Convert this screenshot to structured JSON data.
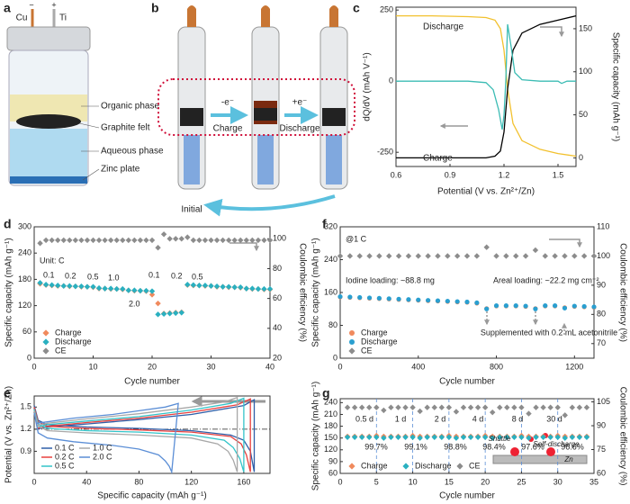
{
  "figure": {
    "panel_a": {
      "letter": "a",
      "electrode_left": "Cu",
      "electrode_right": "Ti",
      "minus": "−",
      "plus": "+",
      "layers": [
        "Organic phase",
        "Graphite felt",
        "Aqueous phase",
        "Zinc plate"
      ]
    },
    "panel_b": {
      "letter": "b",
      "oxidation": "-e⁻",
      "charge": "Charge",
      "reduction": "+e⁻",
      "discharge": "Discharge",
      "initial": "Initial"
    }
  },
  "chart_data": [
    {
      "type": "line",
      "panel": "c",
      "xlabel": "Potential (V vs. Zn²⁺/Zn)",
      "ylabel": "dQ/dV (mAh V⁻¹)",
      "y2label": "Specific capacity (mAh g⁻¹)",
      "xlim": [
        0.6,
        1.6
      ],
      "xticks": [
        0.6,
        0.9,
        1.2,
        1.5
      ],
      "ylim": [
        -300,
        260
      ],
      "yticks": [
        -250,
        0,
        250
      ],
      "y2lim": [
        -10,
        175
      ],
      "y2ticks": [
        0,
        50,
        100,
        150
      ],
      "series": [
        {
          "name": "Discharge",
          "color": "#f2c12e",
          "axis": "y2",
          "x": [
            0.6,
            0.8,
            1.0,
            1.1,
            1.15,
            1.18,
            1.2,
            1.22,
            1.25,
            1.3,
            1.4,
            1.5,
            1.6
          ],
          "values": [
            165,
            165,
            164,
            163,
            160,
            150,
            125,
            80,
            40,
            20,
            10,
            5,
            2
          ]
        },
        {
          "name": "Charge",
          "color": "#000000",
          "axis": "y2",
          "x": [
            0.6,
            0.9,
            1.1,
            1.15,
            1.18,
            1.2,
            1.22,
            1.25,
            1.3,
            1.4,
            1.5,
            1.6
          ],
          "values": [
            0,
            0,
            0,
            2,
            8,
            30,
            80,
            125,
            145,
            155,
            160,
            165
          ]
        },
        {
          "color": "#3cbcb4",
          "x": [
            0.6,
            1.0,
            1.1,
            1.14,
            1.17,
            1.19,
            1.2,
            1.21,
            1.22,
            1.24,
            1.26,
            1.3,
            1.4,
            1.5,
            1.52,
            1.55,
            1.6
          ],
          "values": [
            0,
            0,
            -5,
            -30,
            -100,
            -170,
            -120,
            0,
            200,
            120,
            30,
            5,
            0,
            0,
            -8,
            0,
            0
          ]
        }
      ]
    },
    {
      "type": "scatter",
      "panel": "d",
      "xlabel": "Cycle number",
      "ylabel": "Specific capacity (mAh g⁻¹)",
      "y2label": "Coulombic efficiency (%)",
      "xlim": [
        0,
        40
      ],
      "xticks": [
        0,
        10,
        20,
        30,
        40
      ],
      "ylim": [
        0,
        300
      ],
      "yticks": [
        0,
        60,
        120,
        180,
        240,
        300
      ],
      "y2lim": [
        20,
        108
      ],
      "y2ticks": [
        20,
        40,
        60,
        80,
        100
      ],
      "legend": "lower left",
      "annotations": [
        "Unit: C",
        "0.1",
        "0.2",
        "0.5",
        "1.0",
        "2.0",
        "0.1",
        "0.2",
        "0.5"
      ],
      "x": [
        1,
        2,
        3,
        4,
        5,
        6,
        7,
        8,
        9,
        10,
        11,
        12,
        13,
        14,
        15,
        16,
        17,
        18,
        19,
        20,
        21,
        22,
        23,
        24,
        25,
        26,
        27,
        28,
        29,
        30,
        31,
        32,
        33,
        34,
        35,
        36,
        37,
        38,
        39,
        40
      ],
      "series": [
        {
          "name": "Charge",
          "color": "#f08a5d",
          "marker": "diamond",
          "values": [
            170,
            167,
            166,
            165,
            165,
            164,
            164,
            163,
            163,
            162,
            159,
            159,
            158,
            158,
            157,
            155,
            154,
            154,
            153,
            145,
            125,
            102,
            103,
            104,
            105,
            167,
            166,
            166,
            165,
            165,
            163,
            163,
            162,
            162,
            161,
            159,
            158,
            158,
            157,
            157
          ]
        },
        {
          "name": "Discharge",
          "color": "#2ab0c0",
          "marker": "diamond",
          "values": [
            172,
            168,
            167,
            166,
            165,
            165,
            164,
            164,
            163,
            163,
            160,
            159,
            159,
            158,
            158,
            155,
            155,
            154,
            154,
            153,
            100,
            101,
            102,
            103,
            104,
            168,
            167,
            166,
            166,
            165,
            164,
            163,
            163,
            162,
            162,
            159,
            159,
            158,
            158,
            158
          ]
        },
        {
          "name": "CE",
          "color": "#8c8c8c",
          "marker": "diamond",
          "axis": "y2",
          "values": [
            97,
            99,
            99,
            99,
            99,
            99,
            99,
            99,
            99,
            99,
            99,
            99,
            99,
            99,
            99,
            99,
            99,
            99,
            99,
            99,
            94,
            103,
            100,
            100,
            100,
            101,
            99,
            99,
            99,
            99,
            99,
            99,
            99,
            99,
            99,
            99,
            99,
            99,
            99,
            99
          ]
        }
      ]
    },
    {
      "type": "line",
      "panel": "e",
      "xlabel": "Specific capacity (mAh g⁻¹)",
      "ylabel": "Potential (V vs. Zn²⁺/Zn)",
      "xlim": [
        0,
        180
      ],
      "xticks": [
        0,
        40,
        80,
        120,
        160
      ],
      "ylim": [
        0.6,
        1.65
      ],
      "yticks": [
        0.9,
        1.2,
        1.5
      ],
      "hline": 1.2,
      "legend": "lower left",
      "legend_columns": 2,
      "series": [
        {
          "name": "0.1 C",
          "color": "#2f5fa8",
          "x": [
            0,
            3,
            10,
            40,
            80,
            120,
            150,
            160,
            165,
            168,
            168,
            160,
            120,
            80,
            40,
            10,
            2
          ],
          "values": [
            1.52,
            1.32,
            1.26,
            1.23,
            1.21,
            1.18,
            1.12,
            1.05,
            0.9,
            0.62,
            1.6,
            1.52,
            1.4,
            1.33,
            1.27,
            1.23,
            1.2
          ]
        },
        {
          "name": "0.2 C",
          "color": "#e8403e",
          "x": [
            0,
            3,
            10,
            40,
            80,
            120,
            150,
            158,
            162,
            165,
            165,
            155,
            120,
            80,
            40,
            10,
            2
          ],
          "values": [
            1.5,
            1.3,
            1.24,
            1.21,
            1.19,
            1.16,
            1.1,
            1.0,
            0.85,
            0.62,
            1.61,
            1.53,
            1.43,
            1.35,
            1.29,
            1.24,
            1.21
          ]
        },
        {
          "name": "0.5 C",
          "color": "#33c4c9",
          "x": [
            0,
            3,
            10,
            40,
            80,
            120,
            145,
            152,
            157,
            160,
            160,
            150,
            120,
            80,
            40,
            10,
            2
          ],
          "values": [
            1.47,
            1.27,
            1.21,
            1.18,
            1.16,
            1.12,
            1.05,
            0.95,
            0.8,
            0.62,
            1.62,
            1.55,
            1.46,
            1.37,
            1.31,
            1.26,
            1.23
          ]
        },
        {
          "name": "1.0 C",
          "color": "#a8a8a8",
          "x": [
            0,
            3,
            10,
            40,
            80,
            120,
            140,
            148,
            152,
            155,
            155,
            145,
            120,
            80,
            40,
            10,
            2
          ],
          "values": [
            1.45,
            1.24,
            1.18,
            1.15,
            1.12,
            1.08,
            1.0,
            0.9,
            0.78,
            0.62,
            1.63,
            1.57,
            1.5,
            1.41,
            1.34,
            1.28,
            1.25
          ]
        },
        {
          "name": "2.0 C",
          "color": "#5b8ed6",
          "x": [
            0,
            3,
            10,
            30,
            60,
            80,
            95,
            100,
            103,
            105,
            110,
            100,
            80,
            60,
            30,
            10,
            2
          ],
          "values": [
            1.42,
            1.15,
            1.08,
            1.03,
            0.98,
            0.93,
            0.85,
            0.77,
            0.7,
            0.62,
            1.55,
            1.5,
            1.45,
            1.4,
            1.35,
            1.3,
            1.28
          ]
        }
      ]
    },
    {
      "type": "scatter",
      "panel": "f",
      "xlabel": "Cycle number",
      "ylabel": "Specific capacity (mAh g⁻¹)",
      "y2label": "Coulombic efficiency (%)",
      "xlim": [
        0,
        1300
      ],
      "xticks": [
        0,
        400,
        800,
        1200
      ],
      "ylim": [
        0,
        320
      ],
      "yticks": [
        0,
        80,
        160,
        240,
        320
      ],
      "y2lim": [
        65,
        110
      ],
      "y2ticks": [
        70,
        80,
        90,
        100,
        110
      ],
      "legend": "lower left",
      "annotations": [
        "@1 C",
        "Iodine loading: ~88.8 mg",
        "Areal loading: ~22.2 mg cm⁻²",
        "Supplemented with 0.2 mL acetonitrile"
      ],
      "x": [
        0,
        50,
        100,
        150,
        200,
        250,
        300,
        350,
        400,
        450,
        500,
        550,
        600,
        650,
        700,
        750,
        800,
        850,
        900,
        950,
        1000,
        1050,
        1100,
        1150,
        1200,
        1250,
        1300
      ],
      "series": [
        {
          "name": "Charge",
          "color": "#f08a5d",
          "marker": "circle",
          "values": [
            149,
            148,
            147,
            146,
            145,
            144,
            143,
            142,
            141,
            140,
            139,
            138,
            137,
            136,
            134,
            121,
            127,
            127,
            127,
            126,
            121,
            127,
            127,
            123,
            126,
            125,
            124
          ]
        },
        {
          "name": "Discharge",
          "color": "#2a9fd0",
          "marker": "circle",
          "values": [
            150,
            149,
            148,
            147,
            146,
            145,
            144,
            143,
            142,
            141,
            140,
            139,
            138,
            137,
            135,
            120,
            128,
            128,
            128,
            127,
            120,
            128,
            128,
            122,
            127,
            126,
            125
          ]
        },
        {
          "name": "CE",
          "color": "#8c8c8c",
          "marker": "diamond",
          "axis": "y2",
          "values": [
            100,
            100,
            100,
            100,
            100,
            100,
            100,
            100,
            100,
            100,
            100,
            100,
            100,
            100,
            100,
            103,
            100,
            100,
            100,
            100,
            102,
            100,
            100,
            100,
            100,
            100,
            100
          ]
        }
      ]
    },
    {
      "type": "scatter",
      "panel": "g",
      "xlabel": "Cycle number",
      "ylabel": "Specific capacity (mAh g⁻¹)",
      "y2label": "Coulombic efficiency (%)",
      "xlim": [
        0,
        35
      ],
      "xticks": [
        0,
        5,
        10,
        15,
        20,
        25,
        30,
        35
      ],
      "ylim": [
        60,
        250
      ],
      "yticks": [
        60,
        90,
        120,
        150,
        180,
        210,
        240
      ],
      "y2lim": [
        60,
        107
      ],
      "y2ticks": [
        60,
        75,
        90,
        105
      ],
      "vlines": [
        5,
        10,
        15,
        20,
        25,
        30
      ],
      "legend": "lower left",
      "legend_columns": 3,
      "annotations": [
        "0.5 d",
        "1 d",
        "2 d",
        "4 d",
        "8 d",
        "30 d",
        "99.7%",
        "99.1%",
        "98.8%",
        "98.4%",
        "97.6%",
        "96.6%",
        "Shuttle",
        "Self-discharge",
        "Zn"
      ],
      "x": [
        1,
        2,
        3,
        4,
        5,
        6,
        7,
        8,
        9,
        10,
        11,
        12,
        13,
        14,
        15,
        16,
        17,
        18,
        19,
        20,
        21,
        22,
        23,
        24,
        25,
        26,
        27,
        28,
        29,
        30,
        31,
        32,
        33,
        34
      ],
      "series": [
        {
          "name": "Charge",
          "color": "#f08a5d",
          "marker": "diamond",
          "values": [
            154,
            154,
            154,
            154,
            156,
            154,
            154,
            154,
            154,
            156,
            154,
            154,
            154,
            154,
            156,
            154,
            154,
            154,
            154,
            156,
            154,
            154,
            154,
            154,
            156,
            154,
            154,
            154,
            154,
            156,
            154,
            154,
            154,
            154
          ]
        },
        {
          "name": "Discharge",
          "color": "#2ab0c0",
          "marker": "diamond",
          "values": [
            152,
            152,
            152,
            152,
            152,
            150,
            152,
            152,
            152,
            152,
            150,
            152,
            152,
            152,
            152,
            150,
            152,
            152,
            152,
            152,
            150,
            152,
            152,
            152,
            152,
            150,
            152,
            152,
            152,
            152,
            150,
            152,
            152,
            152
          ]
        },
        {
          "name": "CE",
          "color": "#8c8c8c",
          "marker": "diamond",
          "axis": "y2",
          "values": [
            101.5,
            101.5,
            101.5,
            101.5,
            101.5,
            99.7,
            101.5,
            101.5,
            101.5,
            101.5,
            99.1,
            101.5,
            101.5,
            101.5,
            101.5,
            98.8,
            101.5,
            101.5,
            101.5,
            101.5,
            98.4,
            101.5,
            101.5,
            101.5,
            101.5,
            97.6,
            101.5,
            101.5,
            101.5,
            101.5,
            96.6,
            101.5,
            101.5,
            101.5
          ]
        }
      ]
    }
  ]
}
